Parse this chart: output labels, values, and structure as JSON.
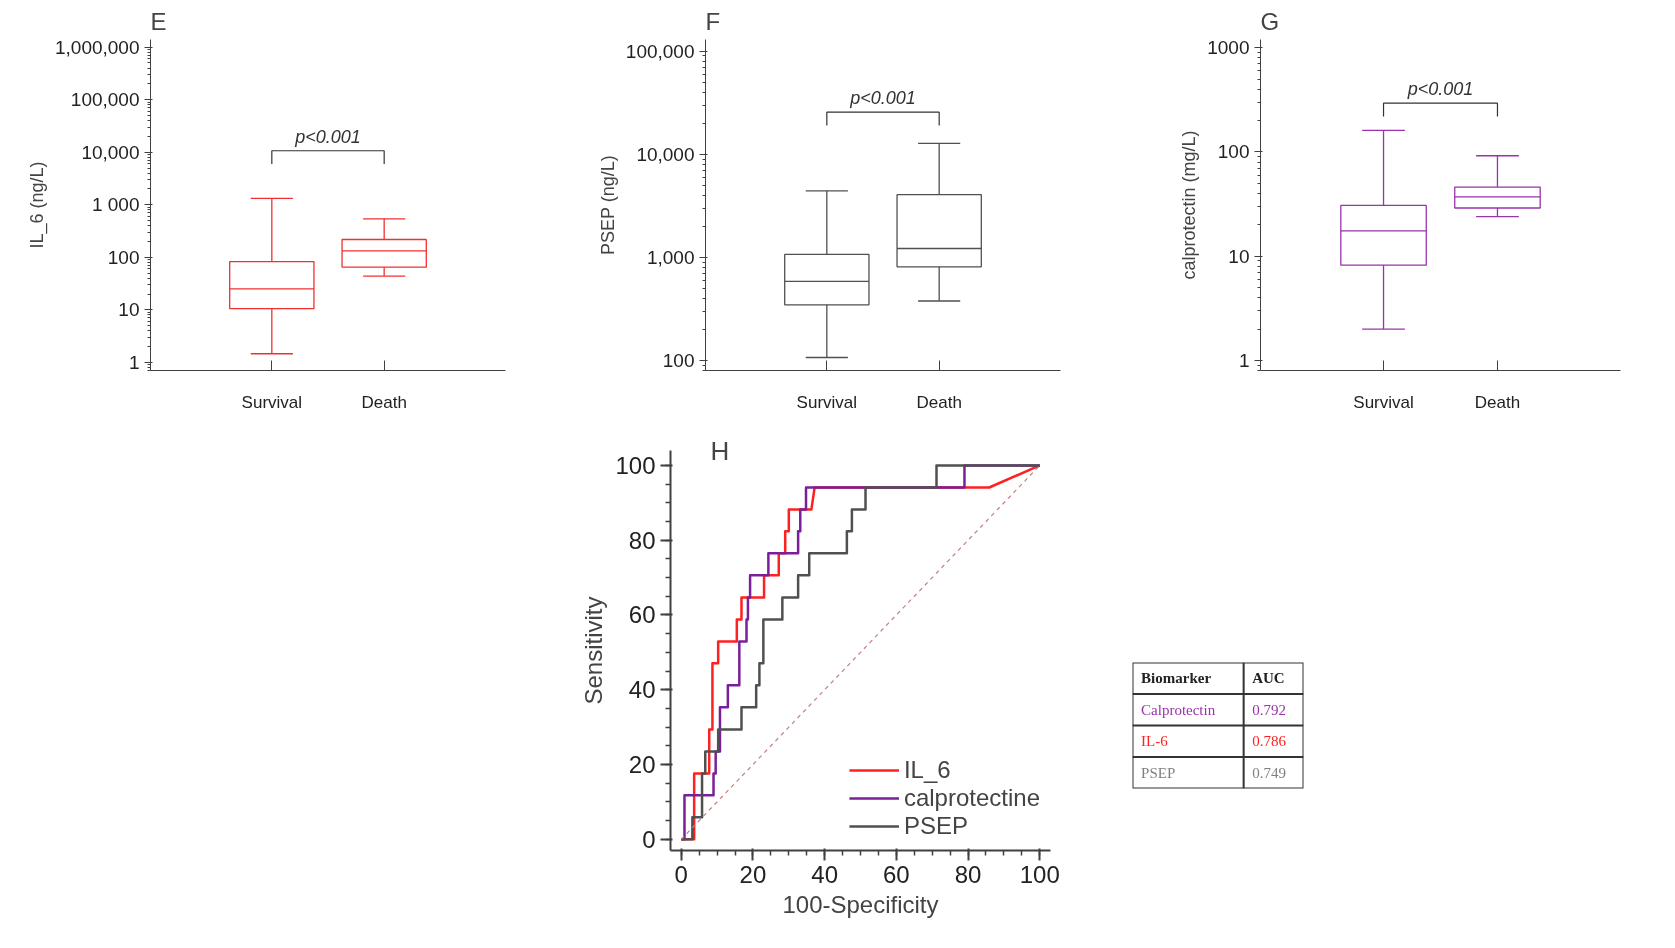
{
  "chart_data": [
    {
      "type": "box",
      "title": "E",
      "ylabel": "IL_6 (ng/L)",
      "categories": [
        "Survival",
        "Death"
      ],
      "log": true,
      "ylim": [
        0.7,
        1400000
      ],
      "yticks": [
        1,
        10,
        100,
        {
          "value": 1000,
          "label": "1 000"
        },
        {
          "value": 10000,
          "label": "10,000"
        },
        {
          "value": 100000,
          "label": "100,000"
        },
        {
          "value": 1000000,
          "label": "1,000,000"
        }
      ],
      "series": [
        {
          "color": "#f03030",
          "boxes": [
            {
              "low": 1.46,
              "q1": 10.5,
              "median": 25,
              "q3": 83,
              "high": 1320
            },
            {
              "low": 44,
              "q1": 65,
              "median": 132,
              "q3": 218,
              "high": 540
            }
          ]
        }
      ],
      "annotations": [
        "p<0.001"
      ],
      "grid": false
    },
    {
      "type": "box",
      "title": "F",
      "ylabel": "PSEP (ng/L)",
      "categories": [
        "Survival",
        "Death"
      ],
      "log": true,
      "ylim": [
        80,
        130000
      ],
      "yticks": [
        100,
        {
          "value": 1000,
          "label": "1,000"
        },
        {
          "value": 10000,
          "label": "10,000"
        },
        {
          "value": 100000,
          "label": "100,000"
        }
      ],
      "series": [
        {
          "color": "#505050",
          "boxes": [
            {
              "low": 107,
              "q1": 347,
              "median": 585,
              "q3": 1070,
              "high": 4430
            },
            {
              "low": 378,
              "q1": 810,
              "median": 1220,
              "q3": 4060,
              "high": 12800
            }
          ]
        }
      ],
      "annotations": [
        "p<0.001"
      ],
      "grid": false
    },
    {
      "type": "box",
      "title": "G",
      "ylabel": "calprotectin (mg/L)",
      "categories": [
        "Survival",
        "Death"
      ],
      "log": true,
      "ylim": [
        0.8,
        1200
      ],
      "yticks": [
        1,
        10,
        100,
        1000
      ],
      "series": [
        {
          "color": "#9933aa",
          "boxes": [
            {
              "low": 2.0,
              "q1": 8.2,
              "median": 17.5,
              "q3": 30.7,
              "high": 161
            },
            {
              "low": 24,
              "q1": 29,
              "median": 37,
              "q3": 46,
              "high": 92
            }
          ]
        }
      ],
      "annotations": [
        "p<0.001"
      ],
      "grid": false
    },
    {
      "type": "line",
      "title": "H",
      "xlabel": "100-Specificity",
      "ylabel": "Sensitivity",
      "xlim": [
        -3,
        103
      ],
      "ylim": [
        -3,
        104
      ],
      "xticks": [
        0,
        20,
        40,
        60,
        80,
        100
      ],
      "yticks": [
        0,
        20,
        40,
        60,
        80,
        100
      ],
      "grid": false,
      "legend": "bottom right",
      "marker": "none",
      "series": [
        {
          "name": "IL_6",
          "color": "#ff2020",
          "x": [
            0,
            3.6,
            3.6,
            7.8,
            7.8,
            8.7,
            8.7,
            10.3,
            10.3,
            15.5,
            15.5,
            16.8,
            16.8,
            23.1,
            23.1,
            27.2,
            27.2,
            29,
            29,
            30,
            30,
            36.3,
            37.2,
            85.9,
            100
          ],
          "values": [
            0,
            0,
            17.6,
            17.6,
            29.4,
            29.4,
            47.1,
            47.1,
            52.9,
            52.9,
            58.8,
            58.8,
            64.7,
            64.7,
            70.6,
            70.6,
            76.5,
            76.5,
            82.4,
            82.4,
            88.2,
            88.2,
            94.1,
            94.1,
            100
          ]
        },
        {
          "name": "calprotectine",
          "color": "#7a1f9a",
          "x": [
            0,
            0.9,
            0.9,
            9.0,
            9.0,
            9.6,
            9.6,
            10.8,
            10.8,
            13,
            13,
            16.2,
            16.2,
            18.2,
            18.2,
            18.6,
            18.6,
            19.2,
            19.2,
            24.3,
            24.3,
            32.6,
            32.6,
            33.2,
            33.2,
            34.8,
            34.8,
            79,
            79,
            100
          ],
          "values": [
            0,
            0,
            11.8,
            11.8,
            17.6,
            17.6,
            23.5,
            23.5,
            35.3,
            35.3,
            41.2,
            41.2,
            52.9,
            52.9,
            58.8,
            58.8,
            64.7,
            64.7,
            70.6,
            70.6,
            76.5,
            76.5,
            82.4,
            82.4,
            88.2,
            88.2,
            94.1,
            94.1,
            100,
            100
          ]
        },
        {
          "name": "PSEP",
          "color": "#505050",
          "x": [
            0,
            3.1,
            3.1,
            5.8,
            5.8,
            6.7,
            6.7,
            10.3,
            10.3,
            16.8,
            16.8,
            20.9,
            20.9,
            21.8,
            21.8,
            22.9,
            22.9,
            28.2,
            28.2,
            32.6,
            32.6,
            35.7,
            35.7,
            46.2,
            46.2,
            47.6,
            47.6,
            51.4,
            51.4,
            71.2,
            71.2,
            100
          ],
          "values": [
            0,
            0,
            5.9,
            5.9,
            17.6,
            17.6,
            23.5,
            23.5,
            29.4,
            29.4,
            35.3,
            35.3,
            41.2,
            41.2,
            47.1,
            47.1,
            58.8,
            58.8,
            64.7,
            64.7,
            70.6,
            70.6,
            76.5,
            76.5,
            82.4,
            82.4,
            88.2,
            88.2,
            94.1,
            94.1,
            100,
            100
          ]
        },
        {
          "color": "#c08080",
          "line_style": "dashed",
          "x": [
            0,
            100
          ],
          "values": [
            0,
            100
          ]
        }
      ]
    },
    {
      "type": "other",
      "annotations": [
        "Biomarker",
        "AUC"
      ],
      "categories": [
        "Calprotectin",
        "IL-6",
        "PSEP"
      ],
      "values": [
        0.792,
        0.786,
        0.749
      ],
      "colors": [
        "#9933aa",
        "#ff2020",
        "#808080"
      ],
      "data_labels": true
    }
  ]
}
